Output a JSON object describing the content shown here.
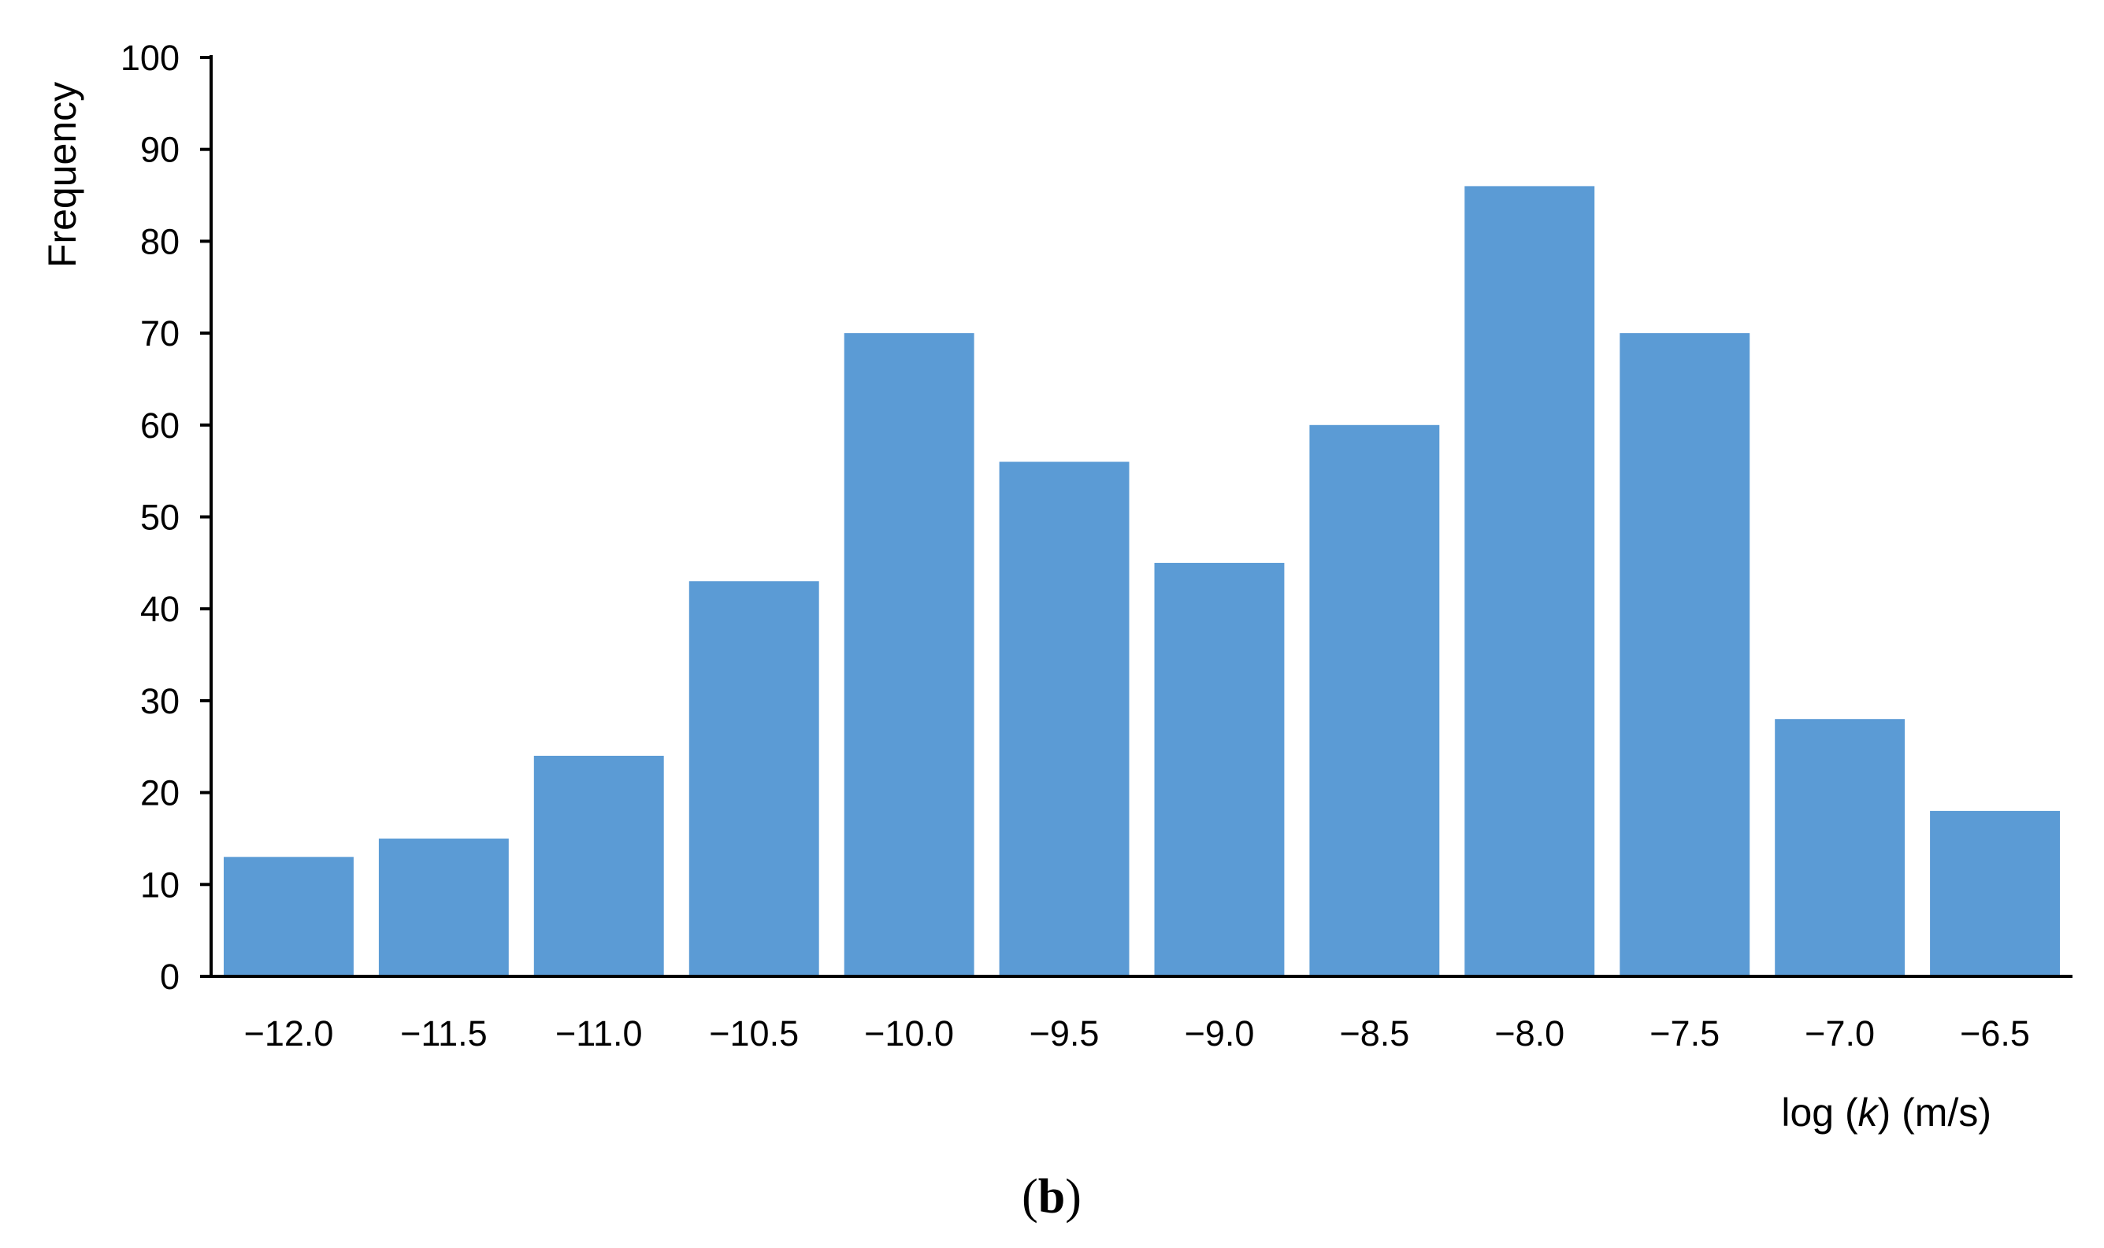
{
  "chart_data": {
    "type": "bar",
    "categories": [
      "−12.0",
      "−11.5",
      "−11.0",
      "−10.5",
      "−10.0",
      "−9.5",
      "−9.0",
      "−8.5",
      "−8.0",
      "−7.5",
      "−7.0",
      "−6.5"
    ],
    "values": [
      13,
      15,
      24,
      43,
      70,
      56,
      45,
      60,
      86,
      70,
      28,
      18
    ],
    "ylabel": "Frequency",
    "xlabel_parts": [
      "log (",
      "k",
      ") (m/s)"
    ],
    "ylim": [
      0,
      100
    ],
    "yticks": [
      0,
      10,
      20,
      30,
      40,
      50,
      60,
      70,
      80,
      90,
      100
    ],
    "bar_color": "#5B9BD5",
    "axis_color": "#000000",
    "grid": false,
    "legend": "none"
  },
  "panel_label_parts": [
    "(",
    "b",
    ")"
  ]
}
